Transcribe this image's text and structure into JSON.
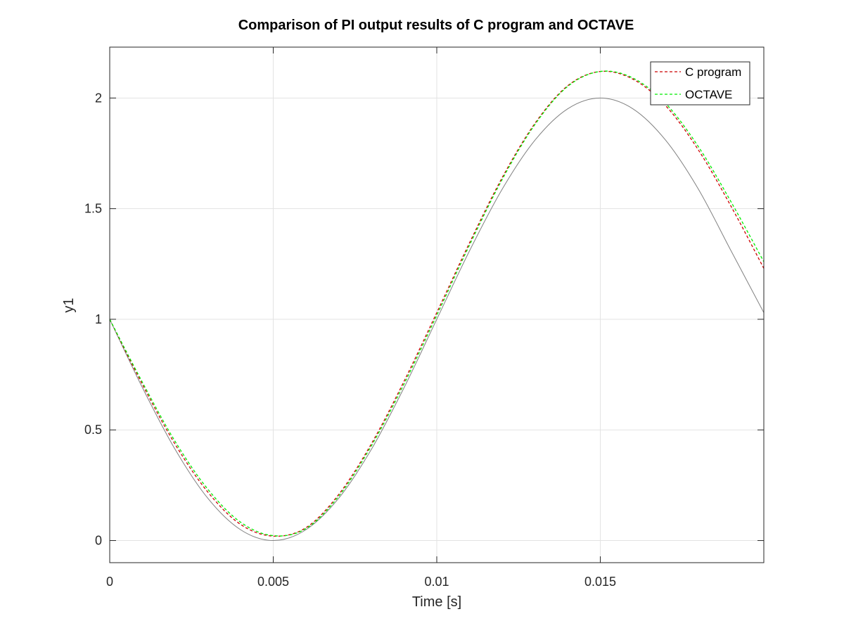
{
  "chart_data": {
    "type": "line",
    "title": "Comparison of PI output results of C program and OCTAVE",
    "xlabel": "Time [s]",
    "ylabel": "y1",
    "xlim": [
      0,
      0.02
    ],
    "ylim": [
      -0.1,
      2.23
    ],
    "grid": true,
    "legend_position": "top-right",
    "x_ticks": [
      0,
      0.005,
      0.01,
      0.015
    ],
    "x_tick_labels": [
      "0",
      "0.005",
      "0.01",
      "0.015"
    ],
    "y_ticks": [
      0,
      0.5,
      1,
      1.5,
      2
    ],
    "y_tick_labels": [
      "0",
      "0.5",
      "1",
      "1.5",
      "2"
    ],
    "series": [
      {
        "legend_label": "",
        "color": "#808080",
        "dash": "solid",
        "x": [
          0,
          0.001,
          0.002,
          0.003,
          0.004,
          0.005,
          0.006,
          0.007,
          0.008,
          0.009,
          0.01,
          0.011,
          0.012,
          0.013,
          0.014,
          0.015,
          0.016,
          0.017,
          0.018,
          0.019,
          0.02
        ],
        "y": [
          1.0,
          0.691,
          0.412,
          0.191,
          0.049,
          0.0,
          0.049,
          0.191,
          0.412,
          0.691,
          1.0,
          1.309,
          1.588,
          1.809,
          1.951,
          2.0,
          1.951,
          1.809,
          1.588,
          1.309,
          1.03
        ]
      },
      {
        "name": "C program",
        "color": "#cc0000",
        "dash": "dashed",
        "x": [
          0,
          0.001,
          0.002,
          0.003,
          0.004,
          0.005,
          0.006,
          0.007,
          0.008,
          0.009,
          0.01,
          0.011,
          0.012,
          0.013,
          0.014,
          0.015,
          0.016,
          0.017,
          0.018,
          0.019,
          0.02
        ],
        "y": [
          1.0,
          0.705,
          0.435,
          0.219,
          0.073,
          0.02,
          0.058,
          0.208,
          0.437,
          0.72,
          1.03,
          1.345,
          1.64,
          1.885,
          2.055,
          2.12,
          2.085,
          1.965,
          1.765,
          1.51,
          1.23
        ]
      },
      {
        "name": "OCTAVE",
        "color": "#00ee00",
        "dash": "dashed",
        "x": [
          0,
          0.001,
          0.002,
          0.003,
          0.004,
          0.005,
          0.006,
          0.007,
          0.008,
          0.009,
          0.01,
          0.011,
          0.012,
          0.013,
          0.014,
          0.015,
          0.016,
          0.017,
          0.018,
          0.019,
          0.02
        ],
        "y": [
          1.0,
          0.715,
          0.448,
          0.232,
          0.083,
          0.022,
          0.054,
          0.2,
          0.428,
          0.708,
          1.018,
          1.335,
          1.632,
          1.88,
          2.052,
          2.12,
          2.09,
          1.975,
          1.78,
          1.53,
          1.26
        ]
      }
    ]
  }
}
